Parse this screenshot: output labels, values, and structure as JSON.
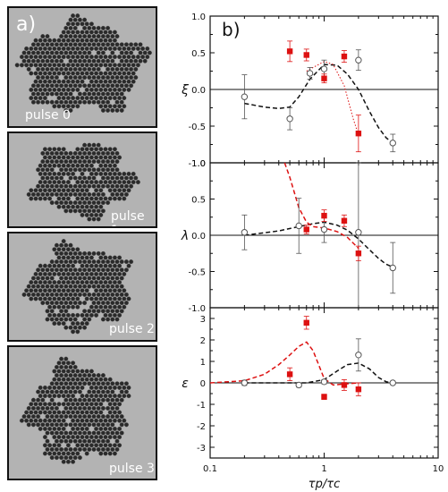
{
  "panel_a": {
    "letter": "a)",
    "pulses": [
      "pulse 0",
      "pulse 1",
      "pulse 2",
      "pulse 3"
    ]
  },
  "panel_b": {
    "letter": "b)"
  },
  "colors": {
    "open": "#555555",
    "filled": "#dd1111",
    "fit_black": "#111111",
    "fit_red": "#dd1111"
  },
  "chart_data": [
    {
      "type": "scatter",
      "ylabel": "ξ",
      "xscale": "log",
      "ylim": [
        -1.0,
        1.0
      ],
      "yticks": [
        "-1.0",
        "-0.5",
        "0.0",
        "0.5",
        "1.0"
      ],
      "reference_line": 0,
      "series": [
        {
          "marker": "open-circle",
          "x": [
            0.2,
            0.5,
            0.75,
            1.0,
            2.0,
            4.0
          ],
          "y": [
            -0.1,
            -0.4,
            0.22,
            0.28,
            0.4,
            -0.73
          ],
          "err": [
            0.3,
            0.15,
            0.08,
            0.12,
            0.14,
            0.12
          ]
        },
        {
          "marker": "filled-square",
          "x": [
            0.5,
            0.7,
            1.0,
            1.5,
            2.0
          ],
          "y": [
            0.52,
            0.47,
            0.15,
            0.45,
            -0.6
          ],
          "err": [
            0.14,
            0.08,
            0.06,
            0.08,
            0.25
          ]
        }
      ],
      "fits": [
        {
          "style": "dashed",
          "color": "black",
          "x": [
            0.2,
            0.3,
            0.4,
            0.5,
            0.6,
            0.75,
            1.0,
            1.3,
            1.6,
            2.0,
            2.5,
            3.0,
            3.5,
            4.0
          ],
          "y": [
            -0.19,
            -0.24,
            -0.26,
            -0.24,
            -0.1,
            0.14,
            0.34,
            0.33,
            0.21,
            0.0,
            -0.3,
            -0.52,
            -0.66,
            -0.73
          ]
        },
        {
          "style": "dotted",
          "color": "red",
          "x": [
            0.7,
            0.8,
            1.0,
            1.2,
            1.5,
            1.8,
            2.0
          ],
          "y": [
            0.25,
            0.3,
            0.38,
            0.34,
            0.05,
            -0.4,
            -0.62
          ]
        }
      ]
    },
    {
      "type": "scatter",
      "ylabel": "λ",
      "xscale": "log",
      "ylim": [
        -1.0,
        1.0
      ],
      "yticks": [
        "-1.0",
        "-0.5",
        "0.0",
        "0.5",
        "1.0"
      ],
      "reference_line": 0,
      "series": [
        {
          "marker": "open-circle",
          "x": [
            0.2,
            0.6,
            1.0,
            2.0,
            4.0
          ],
          "y": [
            0.04,
            0.13,
            0.08,
            0.04,
            -0.45
          ],
          "err": [
            0.24,
            0.38,
            0.18,
            1.05,
            0.35
          ]
        },
        {
          "marker": "filled-square",
          "x": [
            0.7,
            1.0,
            1.5,
            2.0
          ],
          "y": [
            0.08,
            0.27,
            0.2,
            -0.25
          ],
          "err": [
            0.06,
            0.08,
            0.08,
            0.1
          ]
        }
      ],
      "fits": [
        {
          "style": "dashed",
          "color": "black",
          "x": [
            0.2,
            0.4,
            0.6,
            0.8,
            1.0,
            1.3,
            1.6,
            2.0,
            2.5,
            3.0,
            3.5,
            4.0
          ],
          "y": [
            0.0,
            0.06,
            0.12,
            0.16,
            0.18,
            0.14,
            0.07,
            -0.05,
            -0.2,
            -0.32,
            -0.4,
            -0.44
          ]
        },
        {
          "style": "dashed",
          "color": "red",
          "x": [
            0.45,
            0.5,
            0.55,
            0.6,
            0.7,
            0.8,
            1.0,
            1.3,
            1.6,
            2.0
          ],
          "y": [
            1.0,
            0.8,
            0.58,
            0.38,
            0.18,
            0.12,
            0.1,
            0.05,
            -0.03,
            -0.18
          ]
        }
      ]
    },
    {
      "type": "scatter",
      "ylabel": "ε",
      "xlabel": "τp/τc",
      "xscale": "log",
      "xlim": [
        0.1,
        10
      ],
      "xticks": [
        "0.1",
        "1",
        "10"
      ],
      "ylim": [
        -3.5,
        3.5
      ],
      "yticks": [
        "-3",
        "-2",
        "-1",
        "0",
        "1",
        "2",
        "3"
      ],
      "reference_line": 0,
      "series": [
        {
          "marker": "open-circle",
          "x": [
            0.2,
            0.6,
            1.0,
            2.0,
            4.0
          ],
          "y": [
            0.0,
            -0.1,
            0.05,
            1.3,
            0.0
          ],
          "err": [
            0.12,
            0.1,
            0.1,
            0.75,
            0.08
          ]
        },
        {
          "marker": "filled-square",
          "x": [
            0.5,
            0.7,
            1.0,
            1.5,
            2.0
          ],
          "y": [
            0.4,
            2.8,
            -0.65,
            -0.1,
            -0.3
          ],
          "err": [
            0.3,
            0.3,
            0.12,
            0.25,
            0.3
          ]
        }
      ],
      "fits": [
        {
          "style": "dashed",
          "color": "black",
          "x": [
            0.2,
            0.5,
            0.7,
            1.0,
            1.3,
            1.6,
            2.0,
            2.5,
            3.0,
            3.5,
            4.0
          ],
          "y": [
            0.0,
            0.0,
            0.0,
            0.15,
            0.55,
            0.85,
            0.92,
            0.65,
            0.25,
            0.05,
            0.0
          ]
        },
        {
          "style": "dashed",
          "color": "red",
          "x": [
            0.1,
            0.2,
            0.3,
            0.4,
            0.5,
            0.6,
            0.7,
            0.8,
            1.0,
            1.2,
            1.5,
            2.0
          ],
          "y": [
            0.0,
            0.1,
            0.4,
            0.85,
            1.3,
            1.7,
            1.9,
            1.5,
            0.2,
            -0.1,
            -0.05,
            0.0
          ]
        }
      ]
    }
  ]
}
